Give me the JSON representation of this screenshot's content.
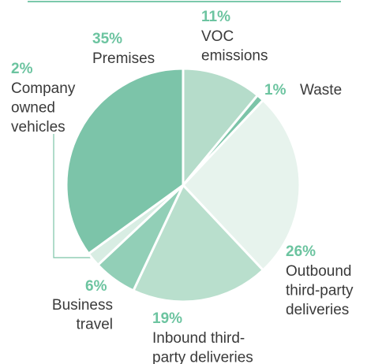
{
  "chart_data": {
    "type": "pie",
    "categories": [
      "VOC\nemissions",
      "Waste",
      "Outbound\nthird-party\ndeliveries",
      "Inbound third-\nparty deliveries",
      "Business\ntravel",
      "Company\nowned\nvehicles",
      "Premises"
    ],
    "values": [
      11,
      1,
      26,
      19,
      6,
      2,
      35
    ],
    "value_labels": [
      "11%",
      "1%",
      "26%",
      "19%",
      "6%",
      "2%",
      "35%"
    ],
    "colors": [
      "#b5dcca",
      "#7cc4a8",
      "#e7f3ed",
      "#b9dfcd",
      "#92cfb7",
      "#d8ede3",
      "#7cc4a9"
    ]
  }
}
